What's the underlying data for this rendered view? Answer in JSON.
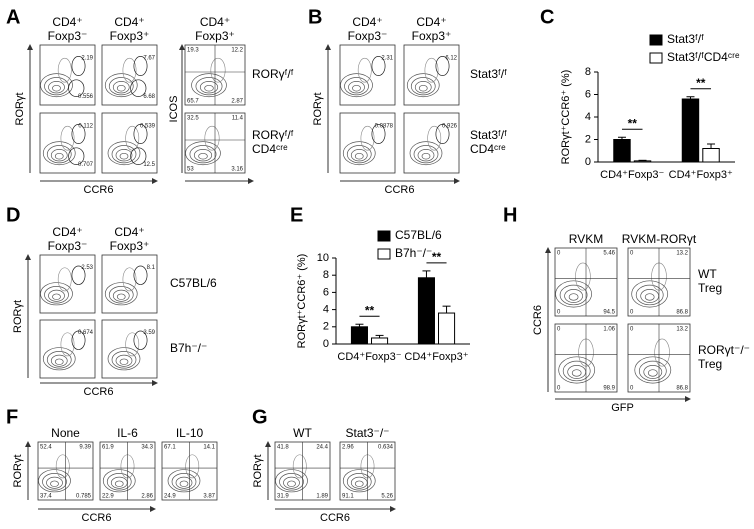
{
  "chart_data": [
    {
      "type": "bar",
      "panel": "C",
      "ylabel": "RORγt⁺CCR6⁺ (%)",
      "categories": [
        "CD4⁺Foxp3⁻",
        "CD4⁺Foxp3⁺"
      ],
      "series": [
        {
          "name": "Stat3ᶠ/ᶠ",
          "color": "#000000",
          "values": [
            2.0,
            5.6
          ],
          "errors": [
            0.2,
            0.2
          ]
        },
        {
          "name": "Stat3ᶠ/ᶠCD4ᶜʳᵉ",
          "color": "#ffffff",
          "values": [
            0.1,
            1.2
          ],
          "errors": [
            0.05,
            0.4
          ]
        }
      ],
      "ylim": [
        0,
        8
      ],
      "yticks": [
        0,
        2,
        4,
        6,
        8
      ],
      "annotations": [
        "**",
        "**"
      ]
    },
    {
      "type": "bar",
      "panel": "E",
      "ylabel": "RORγt⁺CCR6⁺ (%)",
      "categories": [
        "CD4⁺Foxp3⁻",
        "CD4⁺Foxp3⁺"
      ],
      "series": [
        {
          "name": "C57BL/6",
          "color": "#000000",
          "values": [
            2.0,
            7.7
          ],
          "errors": [
            0.3,
            0.8
          ]
        },
        {
          "name": "B7h⁻/⁻",
          "color": "#ffffff",
          "values": [
            0.7,
            3.6
          ],
          "errors": [
            0.3,
            0.8
          ]
        }
      ],
      "ylim": [
        0,
        10
      ],
      "yticks": [
        0,
        2,
        4,
        6,
        8,
        10
      ],
      "annotations": [
        "**",
        "**"
      ]
    }
  ],
  "panels": {
    "A": {
      "label": "A",
      "columns": [
        [
          "CD4⁺",
          "Foxp3⁻"
        ],
        [
          "CD4⁺",
          "Foxp3⁺"
        ],
        [
          "CD4⁺",
          "Foxp3⁺"
        ]
      ],
      "rows": [
        [
          "RORγᶠ/ᶠ"
        ],
        [
          "RORγᶠ/ᶠ",
          "CD4ᶜʳᵉ"
        ]
      ],
      "y_axis": "RORγt",
      "x_axis": "CCR6",
      "y_axis_2": "ICOS",
      "plots": [
        [
          [
            2.19,
            0.556
          ],
          [
            7.67,
            6.68
          ],
          [
            19.3,
            12.2,
            65.7,
            2.87
          ]
        ],
        [
          [
            0.112,
            0.707
          ],
          [
            0.539,
            12.5
          ],
          [
            32.5,
            11.4,
            53.0,
            3.16
          ]
        ]
      ]
    },
    "B": {
      "label": "B",
      "columns": [
        [
          "CD4⁺",
          "Foxp3⁻"
        ],
        [
          "CD4⁺",
          "Foxp3⁺"
        ]
      ],
      "rows": [
        [
          "Stat3ᶠ/ᶠ"
        ],
        [
          "Stat3ᶠ/ᶠ",
          "CD4ᶜʳᵉ"
        ]
      ],
      "y_axis": "RORγt",
      "x_axis": "CCR6",
      "plots": [
        [
          [
            2.31
          ],
          [
            6.12
          ]
        ],
        [
          [
            0.0878
          ],
          [
            0.926
          ]
        ]
      ]
    },
    "D": {
      "label": "D",
      "columns": [
        [
          "CD4⁺",
          "Foxp3⁻"
        ],
        [
          "CD4⁺",
          "Foxp3⁺"
        ]
      ],
      "rows": [
        [
          "C57BL/6"
        ],
        [
          "B7h⁻/⁻"
        ]
      ],
      "y_axis": "RORγt",
      "x_axis": "CCR6",
      "plots": [
        [
          [
            2.53
          ],
          [
            8.1
          ]
        ],
        [
          [
            0.674
          ],
          [
            3.59
          ]
        ]
      ]
    },
    "H": {
      "label": "H",
      "columns": [
        [
          "RVKM"
        ],
        [
          "RVKM-RORγt"
        ]
      ],
      "rows": [
        [
          "WT",
          "Treg"
        ],
        [
          "RORγt⁻/⁻",
          "Treg"
        ]
      ],
      "y_axis": "CCR6",
      "x_axis": "GFP",
      "plots": [
        [
          [
            0,
            5.46,
            0,
            94.5
          ],
          [
            0,
            13.2,
            0,
            86.8
          ]
        ],
        [
          [
            0,
            1.06,
            0,
            98.9
          ],
          [
            0,
            13.2,
            0,
            86.8
          ]
        ]
      ]
    },
    "F": {
      "label": "F",
      "columns": [
        [
          "None"
        ],
        [
          "IL-6"
        ],
        [
          "IL-10"
        ]
      ],
      "rows": [],
      "y_axis": "RORγt",
      "x_axis": "CCR6",
      "plots": [
        [
          [
            52.4,
            9.39,
            37.4,
            0.785
          ],
          [
            61.9,
            34.3,
            22.9,
            2.86
          ],
          [
            67.1,
            14.1,
            24.9,
            3.87
          ]
        ]
      ]
    },
    "G": {
      "label": "G",
      "columns": [
        [
          "WT"
        ],
        [
          "Stat3⁻/⁻"
        ]
      ],
      "rows": [],
      "y_axis": "RORγt",
      "x_axis": "CCR6",
      "plots": [
        [
          [
            41.8,
            24.4,
            31.9,
            1.89
          ],
          [
            2.96,
            0.634,
            91.1,
            5.26
          ]
        ]
      ]
    }
  }
}
